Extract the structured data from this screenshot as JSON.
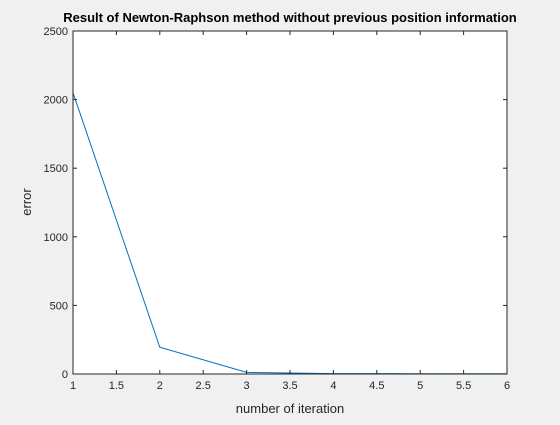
{
  "chart_data": {
    "type": "line",
    "title": "Result of Newton-Raphson method without previous position information",
    "xlabel": "number of iteration",
    "ylabel": "error",
    "xlim": [
      1,
      6
    ],
    "ylim": [
      0,
      2500
    ],
    "xticks": [
      1,
      1.5,
      2,
      2.5,
      3,
      3.5,
      4,
      4.5,
      5,
      5.5,
      6
    ],
    "xtick_labels": [
      "1",
      "1.5",
      "2",
      "2.5",
      "3",
      "3.5",
      "4",
      "4.5",
      "5",
      "5.5",
      "6"
    ],
    "yticks": [
      0,
      500,
      1000,
      1500,
      2000,
      2500
    ],
    "ytick_labels": [
      "0",
      "500",
      "1000",
      "1500",
      "2000",
      "2500"
    ],
    "grid": false,
    "series": [
      {
        "x": [
          1,
          2,
          3,
          4,
          5,
          6
        ],
        "y": [
          2050,
          195,
          12,
          3,
          2,
          2
        ],
        "color": "#0072bd"
      }
    ]
  },
  "colors": {
    "background": "#f0f0f0",
    "axes_background": "#ffffff",
    "axis_line": "#262626",
    "line": "#0072bd"
  }
}
